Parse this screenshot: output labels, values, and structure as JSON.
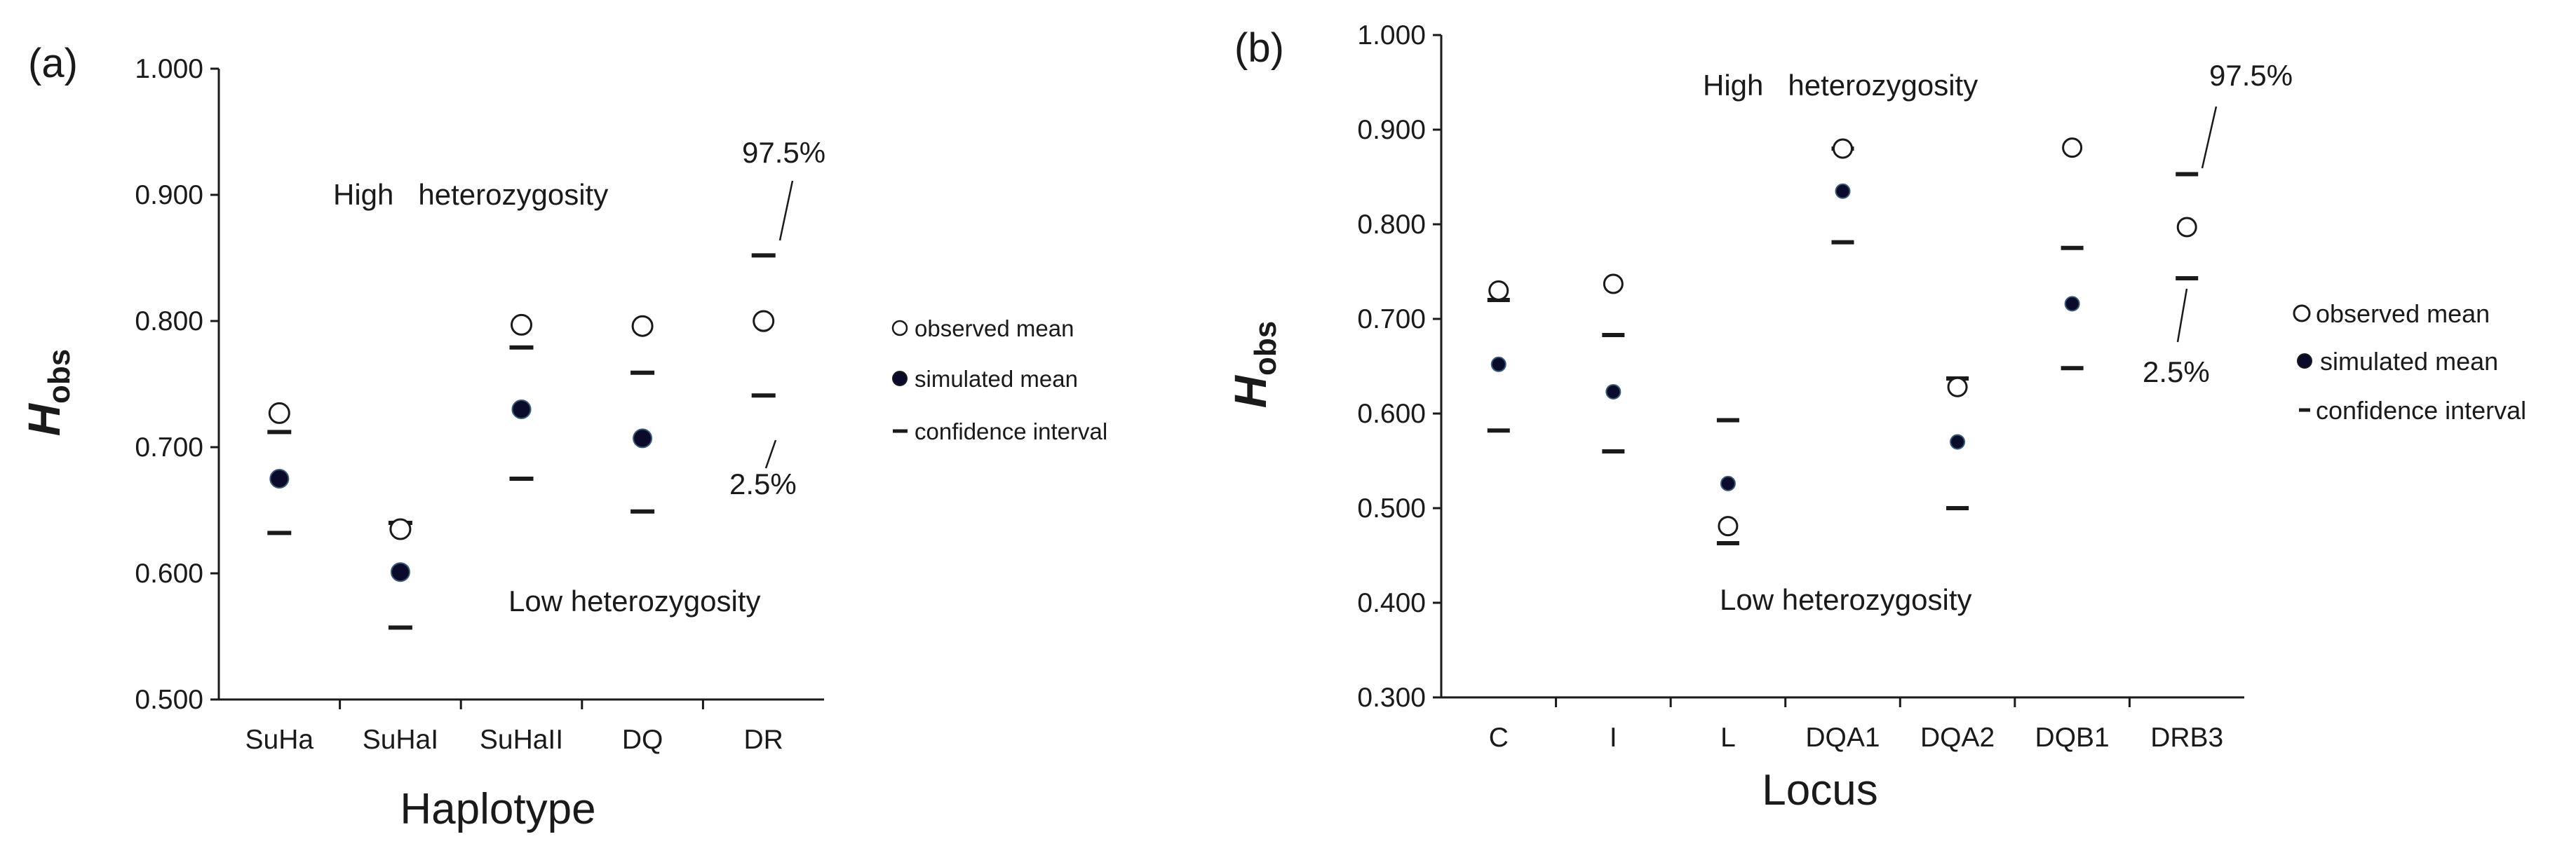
{
  "chart_data": [
    {
      "type": "scatter",
      "panel_label": "(a)",
      "xlabel": "Haplotype",
      "ylabel": "H",
      "ylabel_sub": "obs",
      "ylim": [
        0.5,
        1.0
      ],
      "yticks": [
        "0.500",
        "0.600",
        "0.700",
        "0.800",
        "0.900",
        "1.000"
      ],
      "categories": [
        "SuHa",
        "SuHaI",
        "SuHaII",
        "DQ",
        "DR"
      ],
      "series": [
        {
          "name": "observed mean",
          "values": [
            0.727,
            0.635,
            0.797,
            0.796,
            0.8
          ]
        },
        {
          "name": "simulated mean",
          "values": [
            0.675,
            0.601,
            0.73,
            0.707,
            0.799
          ]
        },
        {
          "name": "confidence interval",
          "upper": [
            0.712,
            0.64,
            0.779,
            0.759,
            0.852
          ],
          "lower": [
            0.632,
            0.557,
            0.675,
            0.649,
            0.741
          ]
        }
      ],
      "annotations": {
        "high": "High   heterozygosity",
        "low": "Low heterozygosity",
        "upper_pct": "97.5%",
        "lower_pct": "2.5%"
      },
      "legend": {
        "observed": "observed mean",
        "simulated": "simulated mean",
        "ci": "confidence interval",
        "position": "right"
      }
    },
    {
      "type": "scatter",
      "panel_label": "(b)",
      "xlabel": "Locus",
      "ylabel": "H",
      "ylabel_sub": "obs",
      "ylim": [
        0.3,
        1.0
      ],
      "yticks": [
        "0.300",
        "0.400",
        "0.500",
        "0.600",
        "0.700",
        "0.800",
        "0.900",
        "1.000"
      ],
      "categories": [
        "C",
        "I",
        "L",
        "DQA1",
        "DQA2",
        "DQB1",
        "DRB3"
      ],
      "series": [
        {
          "name": "observed mean",
          "values": [
            0.73,
            0.737,
            0.481,
            0.88,
            0.628,
            0.881,
            0.797
          ]
        },
        {
          "name": "simulated mean",
          "values": [
            0.652,
            0.623,
            0.526,
            0.835,
            0.57,
            0.716,
            0.799
          ]
        },
        {
          "name": "confidence interval",
          "upper": [
            0.72,
            0.683,
            0.593,
            0.88,
            0.637,
            0.775,
            0.853
          ],
          "lower": [
            0.582,
            0.56,
            0.463,
            0.781,
            0.5,
            0.648,
            0.743
          ]
        }
      ],
      "annotations": {
        "high": "High   heterozygosity",
        "low": "Low heterozygosity",
        "upper_pct": "97.5%",
        "lower_pct": "2.5%"
      },
      "legend": {
        "observed": "observed mean",
        "simulated": "simulated mean",
        "ci": "confidence interval",
        "position": "right"
      }
    }
  ]
}
